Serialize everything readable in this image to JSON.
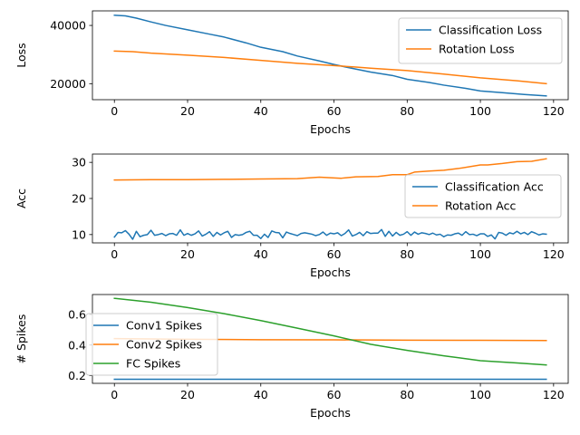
{
  "chart_data": [
    {
      "type": "line",
      "xlabel": "Epochs",
      "ylabel": "Loss",
      "xlim": [
        -6,
        124
      ],
      "ylim": [
        14500,
        45000
      ],
      "xticks": [
        0,
        20,
        40,
        60,
        80,
        100,
        120
      ],
      "xtick_labels": [
        "0",
        "20",
        "40",
        "60",
        "80",
        "100",
        "120"
      ],
      "yticks": [
        20000,
        40000
      ],
      "ytick_labels": [
        "20000",
        "40000"
      ],
      "legend_position": "upper right",
      "series": [
        {
          "name": "Classification Loss",
          "color": "#1f77b4",
          "x_start": 0,
          "x_end": 118,
          "points": [
            [
              0,
              43500
            ],
            [
              3,
              43300
            ],
            [
              6,
              42500
            ],
            [
              10,
              41200
            ],
            [
              14,
              40000
            ],
            [
              20,
              38500
            ],
            [
              26,
              37000
            ],
            [
              30,
              36000
            ],
            [
              36,
              34000
            ],
            [
              40,
              32500
            ],
            [
              46,
              31000
            ],
            [
              50,
              29500
            ],
            [
              56,
              27800
            ],
            [
              60,
              26600
            ],
            [
              64,
              25500
            ],
            [
              70,
              24000
            ],
            [
              76,
              22800
            ],
            [
              80,
              21500
            ],
            [
              86,
              20400
            ],
            [
              90,
              19500
            ],
            [
              96,
              18400
            ],
            [
              100,
              17500
            ],
            [
              106,
              16900
            ],
            [
              112,
              16300
            ],
            [
              118,
              15800
            ]
          ]
        },
        {
          "name": "Rotation Loss",
          "color": "#ff7f0e",
          "x_start": 0,
          "x_end": 118,
          "points": [
            [
              0,
              31200
            ],
            [
              5,
              31000
            ],
            [
              10,
              30500
            ],
            [
              20,
              29800
            ],
            [
              30,
              29000
            ],
            [
              40,
              28000
            ],
            [
              50,
              27000
            ],
            [
              60,
              26200
            ],
            [
              66,
              25700
            ],
            [
              70,
              25300
            ],
            [
              80,
              24500
            ],
            [
              90,
              23300
            ],
            [
              100,
              22000
            ],
            [
              110,
              21000
            ],
            [
              118,
              20000
            ]
          ]
        }
      ]
    },
    {
      "type": "line",
      "xlabel": "Epochs",
      "ylabel": "Acc",
      "xlim": [
        -6,
        124
      ],
      "ylim": [
        7.7,
        32.3
      ],
      "xticks": [
        0,
        20,
        40,
        60,
        80,
        100,
        120
      ],
      "xtick_labels": [
        "0",
        "20",
        "40",
        "60",
        "80",
        "100",
        "120"
      ],
      "yticks": [
        10,
        20,
        30
      ],
      "ytick_labels": [
        "10",
        "20",
        "30"
      ],
      "legend_position": "center right",
      "series": [
        {
          "name": "Classification Acc",
          "color": "#1f77b4",
          "x_start": 0,
          "x_end": 118,
          "values": [
            9.3,
            10.6,
            10.5,
            11.1,
            10.1,
            8.7,
            10.9,
            9.4,
            9.8,
            10.0,
            11.2,
            9.8,
            10.0,
            10.3,
            9.7,
            10.2,
            10.3,
            9.8,
            11.3,
            9.8,
            10.3,
            9.8,
            10.2,
            11.0,
            9.6,
            10.1,
            10.8,
            9.5,
            10.6,
            9.9,
            10.5,
            10.9,
            9.2,
            10.0,
            9.8,
            10.0,
            10.6,
            10.9,
            9.8,
            9.8,
            8.9,
            10.1,
            9.2,
            11.0,
            10.6,
            10.5,
            9.1,
            10.7,
            10.3,
            10.0,
            9.7,
            10.3,
            10.5,
            10.3,
            10.1,
            9.7,
            10.0,
            10.7,
            9.8,
            10.4,
            10.2,
            10.5,
            9.7,
            10.3,
            11.3,
            9.6,
            10.0,
            10.6,
            9.7,
            10.8,
            10.3,
            10.4,
            10.4,
            11.4,
            9.5,
            10.9,
            9.6,
            10.6,
            9.8,
            10.1,
            10.8,
            9.8,
            10.7,
            10.1,
            10.5,
            10.3,
            10.0,
            10.4,
            9.9,
            10.1,
            9.4,
            9.9,
            9.8,
            10.2,
            10.4,
            9.8,
            10.8,
            10.0,
            10.1,
            9.7,
            10.2,
            10.2,
            9.5,
            9.9,
            8.8,
            10.6,
            10.4,
            9.8,
            10.5,
            10.2,
            10.9,
            10.2,
            10.6,
            10.0,
            10.8,
            10.4,
            9.9,
            10.2,
            10.1
          ]
        },
        {
          "name": "Rotation Acc",
          "color": "#ff7f0e",
          "x_start": 0,
          "x_end": 118,
          "points": [
            [
              0,
              25.1
            ],
            [
              10,
              25.2
            ],
            [
              20,
              25.2
            ],
            [
              30,
              25.3
            ],
            [
              40,
              25.4
            ],
            [
              50,
              25.5
            ],
            [
              56,
              25.9
            ],
            [
              62,
              25.6
            ],
            [
              66,
              26.0
            ],
            [
              72,
              26.1
            ],
            [
              76,
              26.6
            ],
            [
              80,
              26.6
            ],
            [
              82,
              27.3
            ],
            [
              86,
              27.6
            ],
            [
              90,
              27.8
            ],
            [
              94,
              28.3
            ],
            [
              100,
              29.3
            ],
            [
              102,
              29.3
            ],
            [
              106,
              29.7
            ],
            [
              110,
              30.2
            ],
            [
              114,
              30.3
            ],
            [
              118,
              31.0
            ]
          ]
        }
      ]
    },
    {
      "type": "line",
      "xlabel": "Epochs",
      "ylabel": "# Spikes",
      "xlim": [
        -6,
        124
      ],
      "ylim": [
        0.15,
        0.73
      ],
      "xticks": [
        0,
        20,
        40,
        60,
        80,
        100,
        120
      ],
      "xtick_labels": [
        "0",
        "20",
        "40",
        "60",
        "80",
        "100",
        "120"
      ],
      "yticks": [
        0.2,
        0.4,
        0.6
      ],
      "ytick_labels": [
        "0.2",
        "0.4",
        "0.6"
      ],
      "legend_position": "center left",
      "series": [
        {
          "name": "Conv1 Spikes",
          "color": "#1f77b4",
          "x_start": 0,
          "x_end": 118,
          "points": [
            [
              0,
              0.177
            ],
            [
              118,
              0.177
            ]
          ]
        },
        {
          "name": "Conv2 Spikes",
          "color": "#ff7f0e",
          "x_start": 0,
          "x_end": 118,
          "points": [
            [
              0,
              0.442
            ],
            [
              20,
              0.438
            ],
            [
              40,
              0.435
            ],
            [
              60,
              0.434
            ],
            [
              80,
              0.432
            ],
            [
              100,
              0.431
            ],
            [
              118,
              0.43
            ]
          ]
        },
        {
          "name": "FC Spikes",
          "color": "#2ca02c",
          "x_start": 0,
          "x_end": 118,
          "points": [
            [
              0,
              0.705
            ],
            [
              10,
              0.68
            ],
            [
              20,
              0.645
            ],
            [
              30,
              0.605
            ],
            [
              40,
              0.56
            ],
            [
              50,
              0.51
            ],
            [
              60,
              0.46
            ],
            [
              70,
              0.405
            ],
            [
              80,
              0.365
            ],
            [
              90,
              0.33
            ],
            [
              100,
              0.298
            ],
            [
              110,
              0.283
            ],
            [
              118,
              0.27
            ]
          ]
        }
      ]
    }
  ]
}
